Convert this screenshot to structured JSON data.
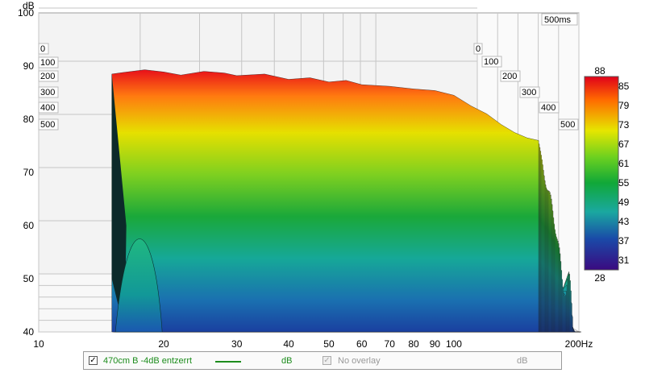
{
  "chart_data": {
    "type": "waterfall",
    "title": "",
    "xlabel_unit": "Hz",
    "ylabel_unit": "dB",
    "x_scale": "log",
    "xlim": [
      10,
      200
    ],
    "ylim": [
      40,
      100
    ],
    "x_ticks": [
      "10",
      "20",
      "30",
      "40",
      "50",
      "60",
      "70",
      "80",
      "90",
      "100",
      "200Hz"
    ],
    "x_tick_values": [
      10,
      20,
      30,
      40,
      50,
      60,
      70,
      80,
      90,
      100,
      200
    ],
    "y_ticks": [
      "40",
      "50",
      "60",
      "70",
      "80",
      "90",
      "100"
    ],
    "y_tick_values": [
      40,
      50,
      60,
      70,
      80,
      90,
      100
    ],
    "time_axis_unit": "ms",
    "time_axis_max_label": "500ms",
    "time_ticks": [
      "0",
      "100",
      "200",
      "300",
      "400",
      "500"
    ],
    "time_tick_values": [
      0,
      100,
      200,
      300,
      400,
      500
    ],
    "colorbar": {
      "top_label": "88",
      "bottom_label": "28",
      "ticks": [
        "85",
        "79",
        "73",
        "67",
        "61",
        "55",
        "49",
        "43",
        "37",
        "31"
      ],
      "tick_values": [
        85,
        79,
        73,
        67,
        61,
        55,
        49,
        43,
        37,
        31
      ],
      "range": [
        28,
        88
      ]
    },
    "first_slice_response": {
      "x": [
        15,
        16,
        18,
        20,
        22,
        25,
        28,
        30,
        35,
        40,
        45,
        50,
        55,
        60,
        70,
        80,
        90,
        100,
        110,
        120,
        130,
        140,
        150,
        160
      ],
      "y": [
        88.5,
        88.8,
        89.3,
        88.9,
        88.3,
        89,
        88.7,
        88.2,
        88.5,
        87.5,
        87.8,
        87,
        87.3,
        86.5,
        86.2,
        85.7,
        85.4,
        84.5,
        82.5,
        81,
        79,
        77.5,
        76.5,
        76
      ]
    }
  },
  "legend": {
    "series_label": "470cm B -4dB entzerrt",
    "series_unit": "dB",
    "series_color": "#1c8c1c",
    "overlay_label": "No overlay",
    "overlay_unit": "dB",
    "checked_mark": "✓"
  }
}
